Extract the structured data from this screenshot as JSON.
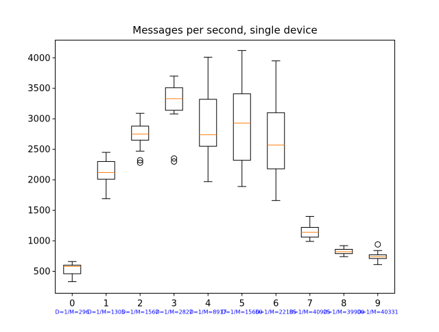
{
  "chart_data": {
    "type": "box",
    "title": "Messages per second, single device",
    "xlabel": "",
    "ylabel": "",
    "ylim": [
      140,
      4290
    ],
    "yticks": [
      500,
      1000,
      1500,
      2000,
      2500,
      3000,
      3500,
      4000
    ],
    "categories": [
      "0",
      "1",
      "2",
      "3",
      "4",
      "5",
      "6",
      "7",
      "8",
      "9"
    ],
    "sub_labels": [
      "D=1/M=296",
      "D=1/M=1305",
      "D=1/M=1567",
      "D=1/M=2827",
      "D=1/M=8917",
      "D=1/M=15660",
      "D=1/M=22185",
      "D=1/M=40925",
      "D=1/M=39900",
      "D=1/M=40331"
    ],
    "sub_label_color": "#0000ff",
    "box_color": "#000000",
    "median_color": "#ff7f0e",
    "boxes": [
      {
        "whislo": 330,
        "q1": 460,
        "med": 580,
        "q3": 600,
        "whishi": 660,
        "fliers": []
      },
      {
        "whislo": 1690,
        "q1": 2010,
        "med": 2120,
        "q3": 2300,
        "whishi": 2450,
        "fliers": []
      },
      {
        "whislo": 2470,
        "q1": 2650,
        "med": 2750,
        "q3": 2880,
        "whishi": 3090,
        "fliers": [
          2280,
          2320
        ]
      },
      {
        "whislo": 3080,
        "q1": 3140,
        "med": 3330,
        "q3": 3510,
        "whishi": 3700,
        "fliers": [
          2300,
          2350
        ]
      },
      {
        "whislo": 1970,
        "q1": 2550,
        "med": 2740,
        "q3": 3320,
        "whishi": 4010,
        "fliers": []
      },
      {
        "whislo": 1890,
        "q1": 2320,
        "med": 2930,
        "q3": 3410,
        "whishi": 4120,
        "fliers": []
      },
      {
        "whislo": 1660,
        "q1": 2180,
        "med": 2570,
        "q3": 3100,
        "whishi": 3950,
        "fliers": []
      },
      {
        "whislo": 990,
        "q1": 1060,
        "med": 1140,
        "q3": 1220,
        "whishi": 1400,
        "fliers": []
      },
      {
        "whislo": 740,
        "q1": 790,
        "med": 820,
        "q3": 860,
        "whishi": 920,
        "fliers": []
      },
      {
        "whislo": 610,
        "q1": 710,
        "med": 740,
        "q3": 770,
        "whishi": 840,
        "fliers": [
          940
        ]
      }
    ]
  }
}
